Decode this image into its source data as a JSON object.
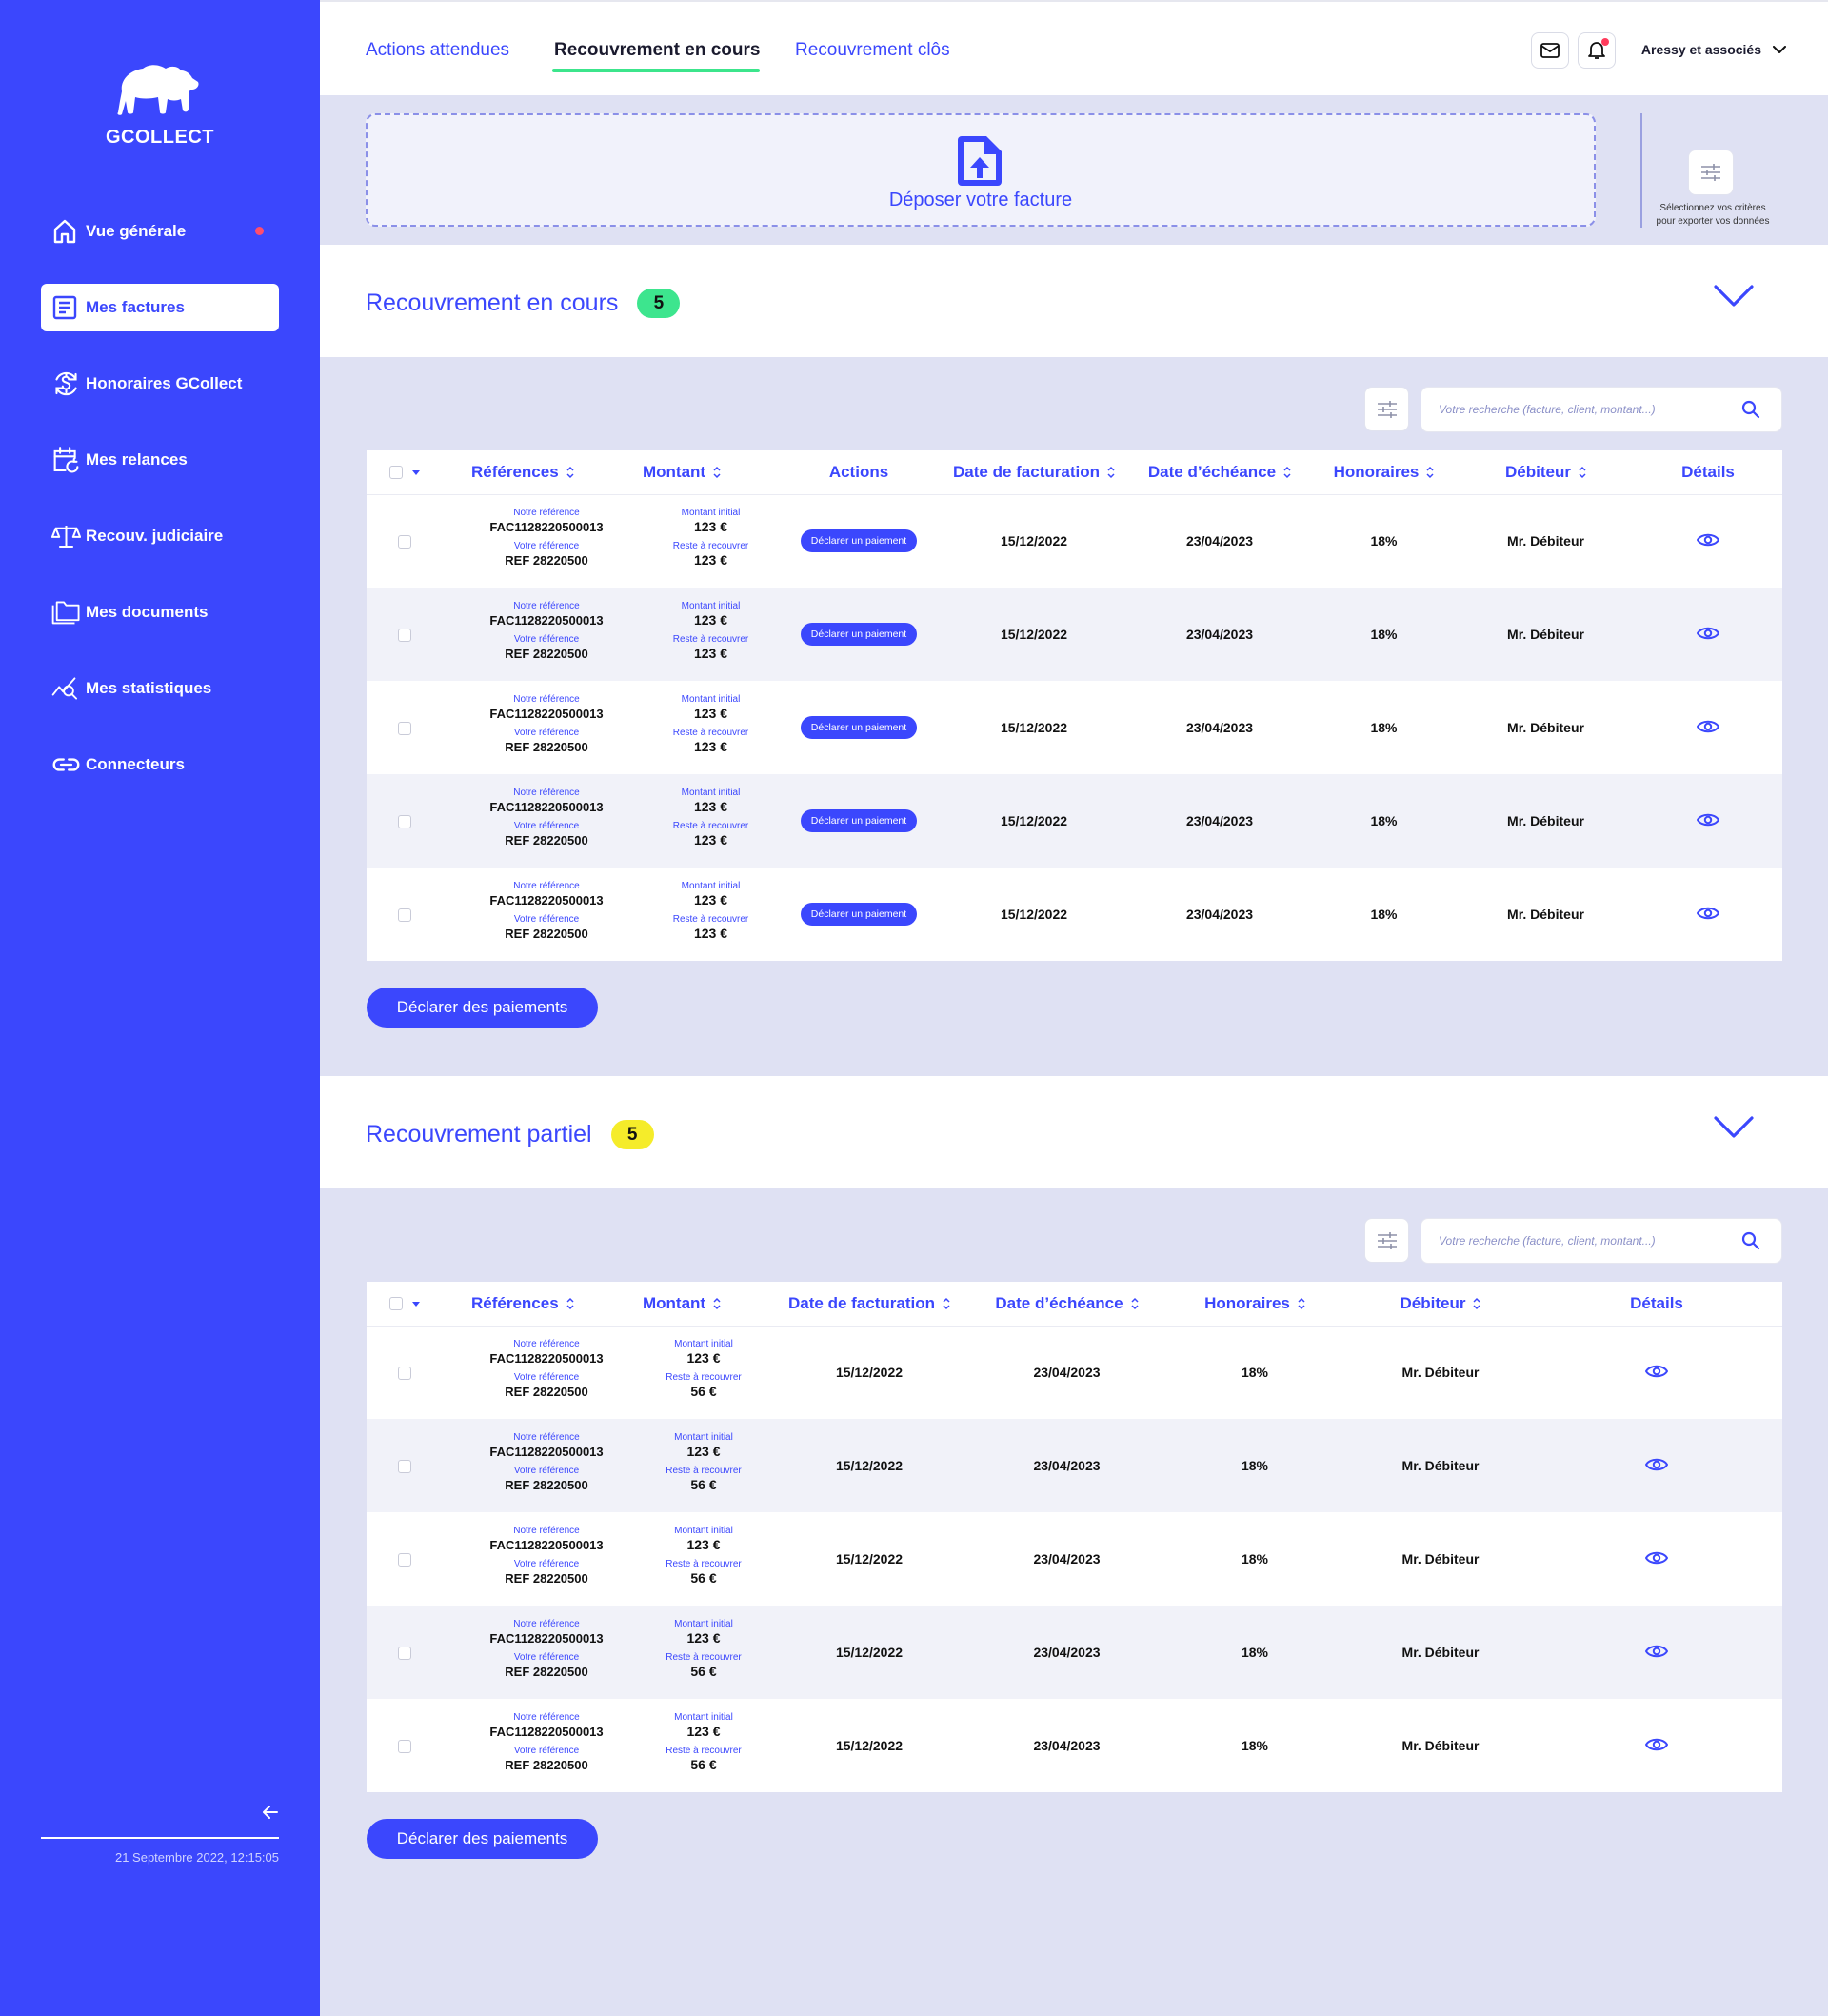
{
  "app": {
    "name": "GCOLLECT"
  },
  "sidebar": {
    "items": [
      {
        "label": "Vue générale",
        "icon": "home-icon"
      },
      {
        "label": "Mes factures",
        "icon": "invoice-icon"
      },
      {
        "label": "Honoraires GCollect",
        "icon": "fees-dollar-icon"
      },
      {
        "label": "Mes relances",
        "icon": "calendar-reminder-icon"
      },
      {
        "label": "Recouv. judiciaire",
        "icon": "scales-icon"
      },
      {
        "label": "Mes documents",
        "icon": "folder-icon"
      },
      {
        "label": "Mes statistiques",
        "icon": "stats-icon"
      },
      {
        "label": "Connecteurs",
        "icon": "link-icon"
      }
    ],
    "active": "Mes factures",
    "datetime": "21 Septembre 2022, 12:15:05"
  },
  "header": {
    "tabs": [
      {
        "label": "Actions attendues"
      },
      {
        "label": "Recouvrement en cours"
      },
      {
        "label": "Recouvrement clôs"
      }
    ],
    "active_tab": "Recouvrement en cours",
    "user_name": "Aressy et associés"
  },
  "upload": {
    "label": "Déposer votre facture"
  },
  "export": {
    "line1": "Sélectionnez vos critères",
    "line2": "pour exporter vos données"
  },
  "section1": {
    "title": "Recouvrement en cours",
    "count": "5",
    "search_placeholder": "Votre recherche (facture, client, montant...)",
    "columns": {
      "references": "Références",
      "montant": "Montant",
      "actions": "Actions",
      "date_facturation": "Date de facturation",
      "date_echeance": "Date d’échéance",
      "honoraires": "Honoraires",
      "debiteur": "Débiteur",
      "details": "Détails"
    },
    "labels": {
      "notre_ref": "Notre référence",
      "votre_ref": "Votre référence",
      "montant_initial": "Montant initial",
      "reste": "Reste à recouvrer",
      "pay_action": "Déclarer un paiement"
    },
    "rows": [
      {
        "notre_ref": "FAC1128220500013",
        "votre_ref": "REF 28220500",
        "montant_initial": "123 €",
        "reste": "123 €",
        "date_facturation": "15/12/2022",
        "date_echeance": "23/04/2023",
        "honoraires": "18%",
        "debiteur": "Mr. Débiteur"
      },
      {
        "notre_ref": "FAC1128220500013",
        "votre_ref": "REF 28220500",
        "montant_initial": "123 €",
        "reste": "123 €",
        "date_facturation": "15/12/2022",
        "date_echeance": "23/04/2023",
        "honoraires": "18%",
        "debiteur": "Mr. Débiteur"
      },
      {
        "notre_ref": "FAC1128220500013",
        "votre_ref": "REF 28220500",
        "montant_initial": "123 €",
        "reste": "123 €",
        "date_facturation": "15/12/2022",
        "date_echeance": "23/04/2023",
        "honoraires": "18%",
        "debiteur": "Mr. Débiteur"
      },
      {
        "notre_ref": "FAC1128220500013",
        "votre_ref": "REF 28220500",
        "montant_initial": "123 €",
        "reste": "123 €",
        "date_facturation": "15/12/2022",
        "date_echeance": "23/04/2023",
        "honoraires": "18%",
        "debiteur": "Mr. Débiteur"
      },
      {
        "notre_ref": "FAC1128220500013",
        "votre_ref": "REF 28220500",
        "montant_initial": "123 €",
        "reste": "123 €",
        "date_facturation": "15/12/2022",
        "date_echeance": "23/04/2023",
        "honoraires": "18%",
        "debiteur": "Mr. Débiteur"
      }
    ],
    "declare_button": "Déclarer des paiements"
  },
  "section2": {
    "title": "Recouvrement partiel",
    "count": "5",
    "search_placeholder": "Votre recherche (facture, client, montant...)",
    "columns": {
      "references": "Références",
      "montant": "Montant",
      "date_facturation": "Date de facturation",
      "date_echeance": "Date d’échéance",
      "honoraires": "Honoraires",
      "debiteur": "Débiteur",
      "details": "Détails"
    },
    "labels": {
      "notre_ref": "Notre référence",
      "votre_ref": "Votre référence",
      "montant_initial": "Montant initial",
      "reste": "Reste à recouvrer"
    },
    "rows": [
      {
        "notre_ref": "FAC1128220500013",
        "votre_ref": "REF 28220500",
        "montant_initial": "123 €",
        "reste": "56 €",
        "date_facturation": "15/12/2022",
        "date_echeance": "23/04/2023",
        "honoraires": "18%",
        "debiteur": "Mr. Débiteur"
      },
      {
        "notre_ref": "FAC1128220500013",
        "votre_ref": "REF 28220500",
        "montant_initial": "123 €",
        "reste": "56 €",
        "date_facturation": "15/12/2022",
        "date_echeance": "23/04/2023",
        "honoraires": "18%",
        "debiteur": "Mr. Débiteur"
      },
      {
        "notre_ref": "FAC1128220500013",
        "votre_ref": "REF 28220500",
        "montant_initial": "123 €",
        "reste": "56 €",
        "date_facturation": "15/12/2022",
        "date_echeance": "23/04/2023",
        "honoraires": "18%",
        "debiteur": "Mr. Débiteur"
      },
      {
        "notre_ref": "FAC1128220500013",
        "votre_ref": "REF 28220500",
        "montant_initial": "123 €",
        "reste": "56 €",
        "date_facturation": "15/12/2022",
        "date_echeance": "23/04/2023",
        "honoraires": "18%",
        "debiteur": "Mr. Débiteur"
      },
      {
        "notre_ref": "FAC1128220500013",
        "votre_ref": "REF 28220500",
        "montant_initial": "123 €",
        "reste": "56 €",
        "date_facturation": "15/12/2022",
        "date_echeance": "23/04/2023",
        "honoraires": "18%",
        "debiteur": "Mr. Débiteur"
      }
    ],
    "declare_button": "Déclarer des paiements"
  },
  "colors": {
    "primary": "#3b47fd",
    "background": "#dfe1f3",
    "green_badge": "#3de58e",
    "yellow_badge": "#f5ec2a",
    "notification": "#ff3b5c"
  }
}
